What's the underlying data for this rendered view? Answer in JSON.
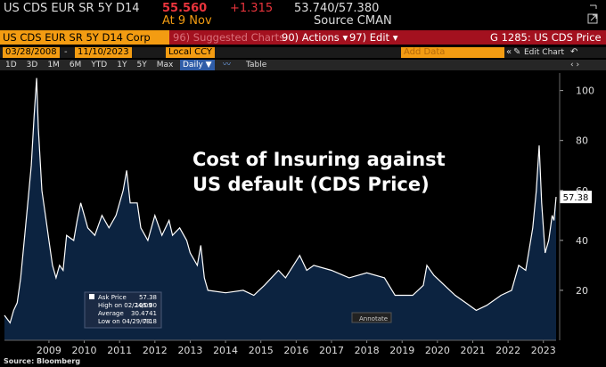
{
  "header": {
    "ticker": "US CDS EUR SR 5Y D14",
    "price": "55.560",
    "change": "+1.315",
    "bid_ask": "53.740/57.380",
    "date": "At 9 Nov",
    "source": "Source CMAN"
  },
  "toolbar": {
    "security": "US CDS EUR SR 5Y D14 Corp",
    "suggested": "96) Suggested Charts",
    "actions": "90) Actions ▾",
    "edit": "97) Edit ▾",
    "function": "G 1285: US CDS Price"
  },
  "controls": {
    "start_date": "03/28/2008",
    "end_date": "11/10/2023",
    "currency": "Local CCY",
    "add_data": "Add Data",
    "edit_chart": "Edit Chart",
    "ranges": [
      "1D",
      "3D",
      "1M",
      "6M",
      "YTD",
      "1Y",
      "5Y",
      "Max"
    ],
    "frequency": "Daily ▼",
    "table": "Table"
  },
  "legend_box": {
    "rows": [
      [
        "Ask Price",
        "57.38"
      ],
      [
        "High on 02/24/09",
        "105.00"
      ],
      [
        "Average",
        "30.4741"
      ],
      [
        "Low on 04/29/08",
        "7.18"
      ]
    ],
    "annotate": "Annotate"
  },
  "footer": "Source: Bloomberg",
  "chart_data": {
    "type": "area",
    "annotation": "Cost of Insuring against US default (CDS Price)",
    "x": [
      2008.24,
      2008.4,
      2008.5,
      2008.6,
      2008.7,
      2008.8,
      2008.9,
      2009.0,
      2009.08,
      2009.15,
      2009.2,
      2009.3,
      2009.4,
      2009.5,
      2009.6,
      2009.7,
      2009.8,
      2009.9,
      2010.0,
      2010.2,
      2010.3,
      2010.4,
      2010.5,
      2010.6,
      2010.8,
      2011.0,
      2011.2,
      2011.4,
      2011.6,
      2011.7,
      2011.8,
      2012.0,
      2012.1,
      2012.3,
      2012.5,
      2012.7,
      2012.9,
      2013.0,
      2013.2,
      2013.4,
      2013.5,
      2013.7,
      2013.8,
      2013.9,
      2014.0,
      2014.5,
      2015.0,
      2015.3,
      2015.6,
      2016.0,
      2016.2,
      2016.6,
      2016.8,
      2017.0,
      2017.5,
      2018.0,
      2018.5,
      2019.0,
      2019.3,
      2019.8,
      2020.1,
      2020.2,
      2020.4,
      2020.7,
      2021.0,
      2021.3,
      2021.6,
      2021.9,
      2022.3,
      2022.6,
      2022.8,
      2023.0,
      2023.2,
      2023.3,
      2023.38,
      2023.45,
      2023.55,
      2023.65,
      2023.75,
      2023.8,
      2023.86
    ],
    "series": [
      {
        "name": "Ask Price",
        "color": "#ffffff",
        "fill": "#0c2340",
        "values": [
          10,
          7,
          12,
          15,
          25,
          40,
          55,
          70,
          90,
          105,
          85,
          60,
          50,
          40,
          30,
          25,
          30,
          28,
          42,
          40,
          48,
          55,
          50,
          45,
          42,
          50,
          45,
          50,
          60,
          68,
          55,
          55,
          45,
          40,
          50,
          42,
          48,
          42,
          45,
          40,
          35,
          30,
          38,
          25,
          20,
          19,
          20,
          18,
          22,
          28,
          25,
          34,
          28,
          30,
          28,
          25,
          27,
          25,
          18,
          18,
          22,
          30,
          26,
          22,
          18,
          15,
          12,
          14,
          18,
          20,
          30,
          28,
          45,
          60,
          78,
          55,
          35,
          40,
          50,
          48,
          57.38
        ]
      }
    ],
    "xlim": [
      2008.24,
      2023.86
    ],
    "xticks": [
      {
        "value": 2009.5,
        "label": "2009"
      },
      {
        "value": 2010.5,
        "label": "2010"
      },
      {
        "value": 2011.5,
        "label": "2011"
      },
      {
        "value": 2012.5,
        "label": "2012"
      },
      {
        "value": 2013.5,
        "label": "2013"
      },
      {
        "value": 2014.5,
        "label": "2014"
      },
      {
        "value": 2015.5,
        "label": "2015"
      },
      {
        "value": 2016.5,
        "label": "2016"
      },
      {
        "value": 2017.5,
        "label": "2017"
      },
      {
        "value": 2018.5,
        "label": "2018"
      },
      {
        "value": 2019.5,
        "label": "2019"
      },
      {
        "value": 2020.5,
        "label": "2020"
      },
      {
        "value": 2021.5,
        "label": "2021"
      },
      {
        "value": 2022.5,
        "label": "2022"
      },
      {
        "value": 2023.5,
        "label": "2023"
      }
    ],
    "ylim": [
      0,
      107
    ],
    "yticks": [
      20,
      40,
      60,
      80,
      100
    ]
  }
}
